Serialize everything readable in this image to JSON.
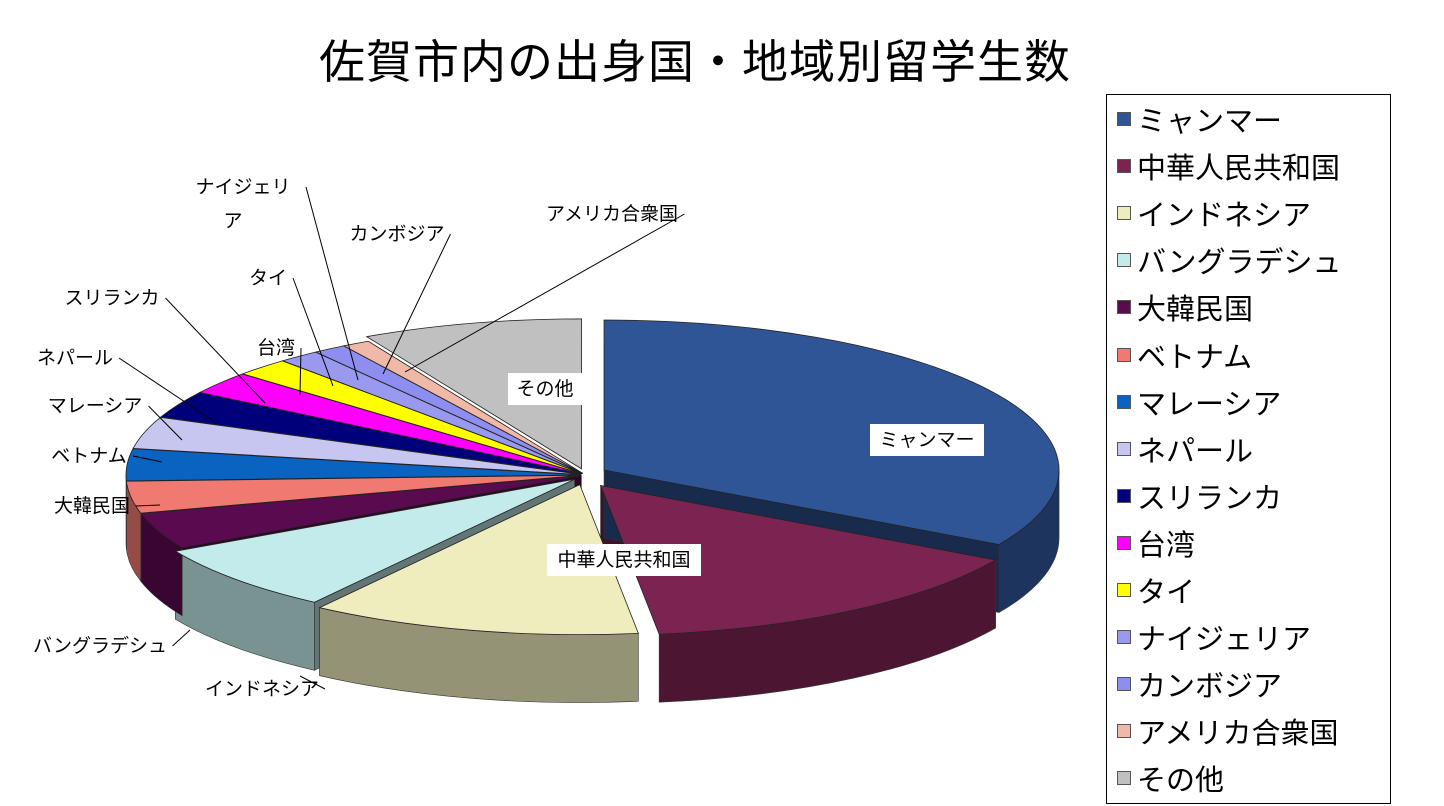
{
  "chart_data": {
    "type": "pie",
    "title": "佐賀市内の出身国・地域別留学生数",
    "legend_position": "right",
    "slices": [
      {
        "label": "ミャンマー",
        "value": 34.0,
        "color": "#2F5597"
      },
      {
        "label": "中華人民共和国",
        "value": 15.0,
        "color": "#7B2452"
      },
      {
        "label": "インドネシア",
        "value": 12.0,
        "color": "#EFEDBD"
      },
      {
        "label": "バングラデシュ",
        "value": 7.5,
        "color": "#C3EBEB"
      },
      {
        "label": "大韓民国",
        "value": 4.0,
        "color": "#5A0A4E"
      },
      {
        "label": "ベトナム",
        "value": 3.5,
        "color": "#F07A72"
      },
      {
        "label": "マレーシア",
        "value": 3.5,
        "color": "#0A63C0"
      },
      {
        "label": "ネパール",
        "value": 3.5,
        "color": "#C6C6F0"
      },
      {
        "label": "スリランカ",
        "value": 3.0,
        "color": "#00007A"
      },
      {
        "label": "台湾",
        "value": 2.5,
        "color": "#FF00FF"
      },
      {
        "label": "タイ",
        "value": 2.0,
        "color": "#FFFF00"
      },
      {
        "label": "ナイジェリア",
        "value": 1.5,
        "color": "#9999F0"
      },
      {
        "label": "カンボジア",
        "value": 1.2,
        "color": "#8E8EF0"
      },
      {
        "label": "アメリカ合衆国",
        "value": 1.0,
        "color": "#F0B8A6"
      },
      {
        "label": "その他",
        "value": 8.0,
        "color": "#C0C0C0"
      }
    ]
  }
}
